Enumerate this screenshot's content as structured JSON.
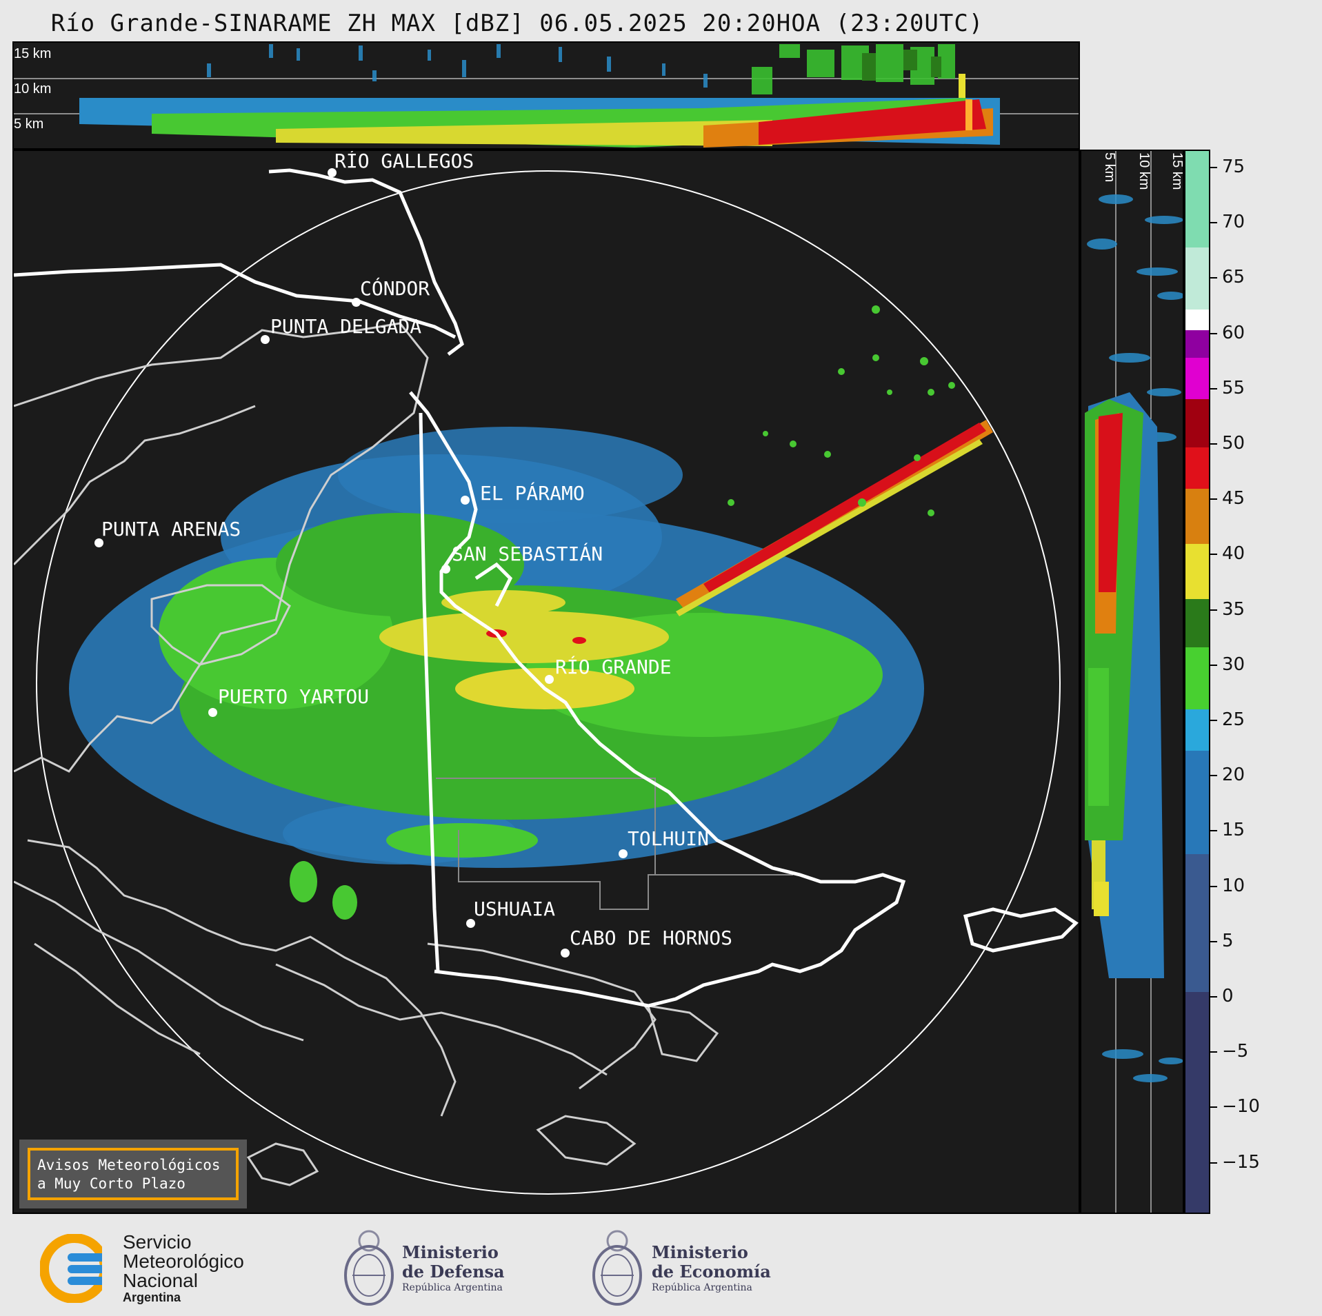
{
  "title": "Río Grande-SINARAME ZH MAX [dBZ] 06.05.2025 20:20HOA (23:20UTC)",
  "top_panel": {
    "altitude_labels": [
      "15 km",
      "10 km",
      "5 km"
    ]
  },
  "side_panel": {
    "altitude_labels": [
      "5 km",
      "10 km",
      "15 km"
    ]
  },
  "cities": [
    {
      "name": "RÍO GALLEGOS"
    },
    {
      "name": "CÓNDOR"
    },
    {
      "name": "PUNTA DELGADA"
    },
    {
      "name": "EL PÁRAMO"
    },
    {
      "name": "PUNTA ARENAS"
    },
    {
      "name": "SAN SEBASTIÁN"
    },
    {
      "name": "RÍO GRANDE"
    },
    {
      "name": "PUERTO YARTOU"
    },
    {
      "name": "TOLHUIN"
    },
    {
      "name": "USHUAIA"
    },
    {
      "name": "CABO DE HORNOS"
    }
  ],
  "colorbar": {
    "unit": "dBZ",
    "ticks": [
      "75",
      "70",
      "65",
      "60",
      "55",
      "50",
      "45",
      "40",
      "35",
      "30",
      "25",
      "20",
      "15",
      "10",
      "5",
      "0",
      "−5",
      "−10",
      "−15"
    ],
    "colors": {
      "above_60": "#7fdcb0",
      "white": "#ffffff",
      "purple": "#8f00a0",
      "magenta": "#e000d0",
      "dark_red": "#a00010",
      "red": "#e0101a",
      "orange": "#d88010",
      "yellow": "#e8e030",
      "dark_green": "#2a7a1a",
      "green": "#48d030",
      "light_blue": "#2aa8dc",
      "blue": "#2878b8",
      "slate": "#3a5a90",
      "navy": "#353a68"
    }
  },
  "warning_box": {
    "line1": "Avisos Meteorológicos",
    "line2": "a Muy Corto Plazo"
  },
  "logos": {
    "smn": {
      "line1": "Servicio",
      "line2": "Meteorológico",
      "line3": "Nacional",
      "line4": "Argentina"
    },
    "defensa": {
      "line1": "Ministerio",
      "line2": "de Defensa",
      "line3": "República Argentina"
    },
    "economia": {
      "line1": "Ministerio",
      "line2": "de Economía",
      "line3": "República Argentina"
    }
  }
}
